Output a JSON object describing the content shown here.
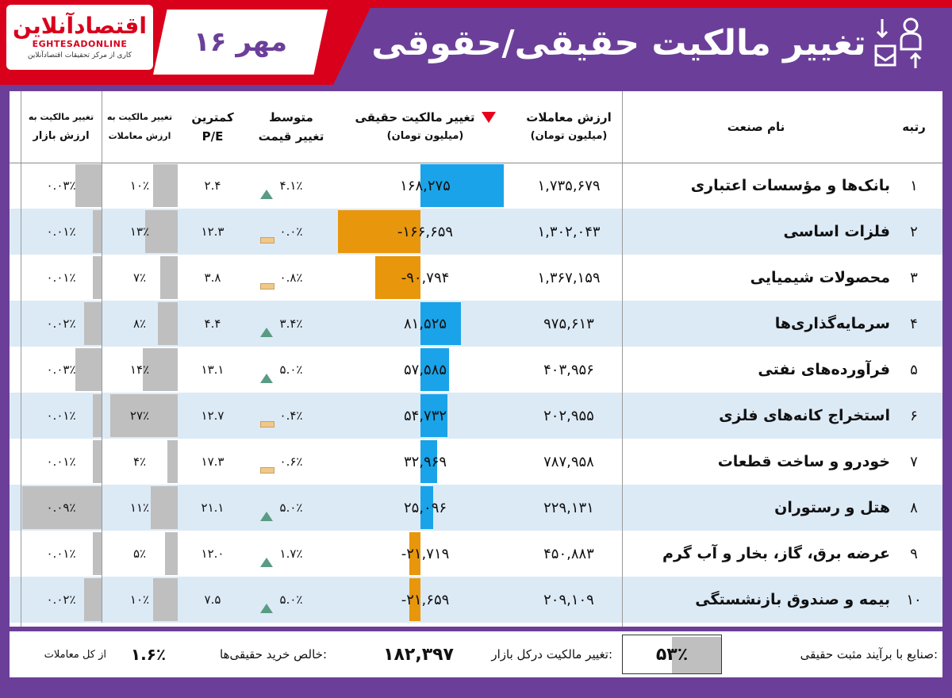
{
  "header": {
    "logo_main": "اقتصادآنلاین",
    "logo_latin": "EGHTESADONLINE",
    "logo_sub": "کاری از مرکز تحقیقات اقتصادآنلاین",
    "date": "۱۶ مهر",
    "title": "تغییر مالکیت حقیقی/حقوقی",
    "icon": "person-transfer-icon"
  },
  "columns": {
    "rank": "رتبه",
    "industry": "نام صنعت",
    "value_l1": "ارزش معاملات",
    "value_l2": "(میلیون تومان)",
    "change_l1": "تغییر مالکیت حقیقی",
    "change_l2": "(میلیون تومان)",
    "price_l1": "متوسط",
    "price_l2": "تغییر قیمت",
    "pe_l1": "کمترین",
    "pe_l2": "P/E",
    "tv_l1": "تغییر مالکیت به",
    "tv_l2": "ارزش معاملات",
    "mc_l1": "تغییر مالکیت به",
    "mc_l2": "ارزش بازار",
    "sort_indicator": "sort-down-icon"
  },
  "rows": [
    {
      "rank": "۱",
      "industry": "بانک‌ها و مؤسسات اعتباری",
      "value": "۱,۷۳۵,۶۷۹",
      "change": "۱۶۸,۲۷۵",
      "change_num": 168275,
      "price_change": "۴.۱٪",
      "trend": "up",
      "pe": "۲.۴",
      "tv_ratio": "۱۰٪",
      "tv_num": 10,
      "mc_ratio": "۰.۰۳٪",
      "mc_num": 0.03
    },
    {
      "rank": "۲",
      "industry": "فلزات اساسی",
      "value": "۱,۳۰۲,۰۴۳",
      "change": "-۱۶۶,۶۵۹",
      "change_num": -166659,
      "price_change": "۰.۰٪",
      "trend": "flat",
      "pe": "۱۲.۳",
      "tv_ratio": "۱۳٪",
      "tv_num": 13,
      "mc_ratio": "۰.۰۱٪",
      "mc_num": 0.01
    },
    {
      "rank": "۳",
      "industry": "محصولات شیمیایی",
      "value": "۱,۳۶۷,۱۵۹",
      "change": "-۹۰,۷۹۴",
      "change_num": -90794,
      "price_change": "۰.۸٪",
      "trend": "flat",
      "pe": "۳.۸",
      "tv_ratio": "۷٪",
      "tv_num": 7,
      "mc_ratio": "۰.۰۱٪",
      "mc_num": 0.01
    },
    {
      "rank": "۴",
      "industry": "سرمایه‌گذاری‌ها",
      "value": "۹۷۵,۶۱۳",
      "change": "۸۱,۵۲۵",
      "change_num": 81525,
      "price_change": "۳.۴٪",
      "trend": "up",
      "pe": "۴.۴",
      "tv_ratio": "۸٪",
      "tv_num": 8,
      "mc_ratio": "۰.۰۲٪",
      "mc_num": 0.02
    },
    {
      "rank": "۵",
      "industry": "فرآورده‌های نفتی",
      "value": "۴۰۳,۹۵۶",
      "change": "۵۷,۵۸۵",
      "change_num": 57585,
      "price_change": "۵.۰٪",
      "trend": "up",
      "pe": "۱۳.۱",
      "tv_ratio": "۱۴٪",
      "tv_num": 14,
      "mc_ratio": "۰.۰۳٪",
      "mc_num": 0.03
    },
    {
      "rank": "۶",
      "industry": "استخراج کانه‌های فلزی",
      "value": "۲۰۲,۹۵۵",
      "change": "۵۴,۷۳۲",
      "change_num": 54732,
      "price_change": "۰.۴٪",
      "trend": "flat",
      "pe": "۱۲.۷",
      "tv_ratio": "۲۷٪",
      "tv_num": 27,
      "mc_ratio": "۰.۰۱٪",
      "mc_num": 0.01
    },
    {
      "rank": "۷",
      "industry": "خودرو و ساخت قطعات",
      "value": "۷۸۷,۹۵۸",
      "change": "۳۲,۹۶۹",
      "change_num": 32969,
      "price_change": "۰.۶٪",
      "trend": "flat",
      "pe": "۱۷.۳",
      "tv_ratio": "۴٪",
      "tv_num": 4,
      "mc_ratio": "۰.۰۱٪",
      "mc_num": 0.01
    },
    {
      "rank": "۸",
      "industry": "هتل و رستوران",
      "value": "۲۲۹,۱۳۱",
      "change": "۲۵,۰۹۶",
      "change_num": 25096,
      "price_change": "۵.۰٪",
      "trend": "up",
      "pe": "۲۱.۱",
      "tv_ratio": "۱۱٪",
      "tv_num": 11,
      "mc_ratio": "۰.۰۹٪",
      "mc_num": 0.09
    },
    {
      "rank": "۹",
      "industry": "عرضه برق، گاز، بخار و آب گرم",
      "value": "۴۵۰,۸۸۳",
      "change": "-۲۱,۷۱۹",
      "change_num": -21719,
      "price_change": "۱.۷٪",
      "trend": "up",
      "pe": "۱۲.۰",
      "tv_ratio": "۵٪",
      "tv_num": 5,
      "mc_ratio": "۰.۰۱٪",
      "mc_num": 0.01
    },
    {
      "rank": "۱۰",
      "industry": "بیمه و صندوق بازنشستگی",
      "value": "۲۰۹,۱۰۹",
      "change": "-۲۱,۶۵۹",
      "change_num": -21659,
      "price_change": "۵.۰٪",
      "trend": "up",
      "pe": "۷.۵",
      "tv_ratio": "۱۰٪",
      "tv_num": 10,
      "mc_ratio": "۰.۰۲٪",
      "mc_num": 0.02
    }
  ],
  "footer": {
    "positive_label": "صنایع با برآیند مثبت حقیقی:",
    "positive_value": "۵۳٪",
    "market_label": "تغییر مالکیت درکل بازار:",
    "market_value": "۱۸۲,۳۹۷",
    "net_label": "خالص خرید حقیقی‌ها:",
    "net_value": "۱.۶٪",
    "net_suffix": "از کل معاملات"
  },
  "colors": {
    "purple": "#6b3f99",
    "red": "#d9001b",
    "positive_bar": "#1aa3e8",
    "negative_bar": "#e8960c",
    "ratio_bar": "#bfbfbf",
    "alt_row": "#dceaf6"
  }
}
